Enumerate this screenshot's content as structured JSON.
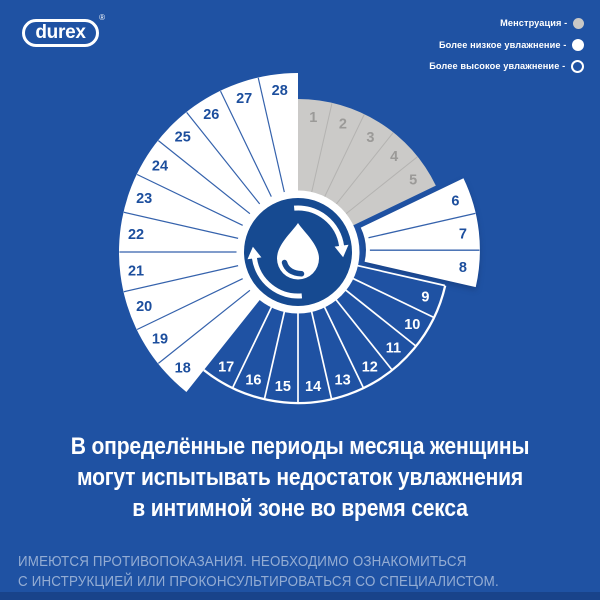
{
  "brand": {
    "logo_text": "durex",
    "registered_mark": "®"
  },
  "legend": {
    "items": [
      {
        "label": "Менструация -",
        "status": "menstruation",
        "swatch": "gray-filled"
      },
      {
        "label": "Более низкое увлажнение -",
        "status": "lower-moisture",
        "swatch": "white-filled"
      },
      {
        "label": "Более высокое увлажнение -",
        "status": "higher-moisture",
        "swatch": "white-outline"
      }
    ]
  },
  "wheel": {
    "type": "radial-cycle-diagram",
    "total_days": 28,
    "center_icon": "moisture-drop-cycle-icon",
    "day_statuses": [
      {
        "day": 1,
        "status": "menstruation"
      },
      {
        "day": 2,
        "status": "menstruation"
      },
      {
        "day": 3,
        "status": "menstruation"
      },
      {
        "day": 4,
        "status": "menstruation"
      },
      {
        "day": 5,
        "status": "menstruation"
      },
      {
        "day": 6,
        "status": "lower-moisture-highlighted"
      },
      {
        "day": 7,
        "status": "lower-moisture-highlighted"
      },
      {
        "day": 8,
        "status": "lower-moisture-highlighted"
      },
      {
        "day": 9,
        "status": "higher-moisture"
      },
      {
        "day": 10,
        "status": "higher-moisture"
      },
      {
        "day": 11,
        "status": "higher-moisture"
      },
      {
        "day": 12,
        "status": "higher-moisture"
      },
      {
        "day": 13,
        "status": "higher-moisture"
      },
      {
        "day": 14,
        "status": "higher-moisture"
      },
      {
        "day": 15,
        "status": "higher-moisture"
      },
      {
        "day": 16,
        "status": "higher-moisture"
      },
      {
        "day": 17,
        "status": "higher-moisture"
      },
      {
        "day": 18,
        "status": "lower-moisture"
      },
      {
        "day": 19,
        "status": "lower-moisture"
      },
      {
        "day": 20,
        "status": "lower-moisture"
      },
      {
        "day": 21,
        "status": "lower-moisture"
      },
      {
        "day": 22,
        "status": "lower-moisture"
      },
      {
        "day": 23,
        "status": "lower-moisture"
      },
      {
        "day": 24,
        "status": "lower-moisture"
      },
      {
        "day": 25,
        "status": "lower-moisture"
      },
      {
        "day": 26,
        "status": "lower-moisture"
      },
      {
        "day": 27,
        "status": "lower-moisture"
      },
      {
        "day": 28,
        "status": "lower-moisture"
      }
    ]
  },
  "colors": {
    "background": "#1f52a3",
    "hub": "#164a91",
    "navy_text": "#1c4e9d",
    "divider_on_white": "#3562ac",
    "gray_fill": "#cbcac8",
    "gray_divider": "#b4b3b1",
    "gray_number": "#9b9a98",
    "white": "#ffffff",
    "legend_gray_swatch": "#c9c8c6"
  },
  "heading": {
    "lines": [
      "В определённые периоды месяца женщины",
      "могут испытывать недостаток увлажнения",
      "в интимной зоне во время секса"
    ]
  },
  "disclaimer": {
    "lines": [
      "ИМЕЮТСЯ ПРОТИВОПОКАЗАНИЯ. НЕОБХОДИМО ОЗНАКОМИТЬСЯ",
      "С ИНСТРУКЦИЕЙ ИЛИ ПРОКОНСУЛЬТИРОВАТЬСЯ СО СПЕЦИАЛИСТОМ."
    ]
  }
}
